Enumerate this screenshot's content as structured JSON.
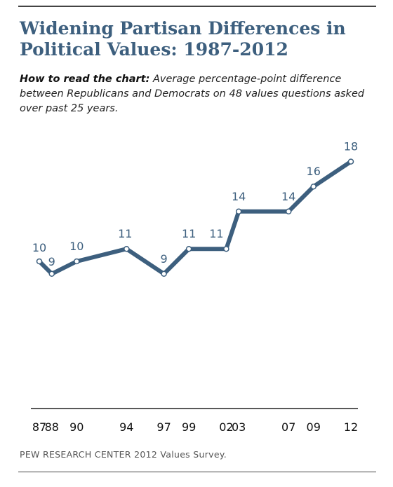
{
  "title_line1": "Widening Partisan Differences in",
  "title_line2": "Political Values: 1987-2012",
  "subtitle_lead": "How to read the chart:",
  "subtitle_text": "Average percentage-point difference between Republicans and Democrats on 48 values questions asked over past 25 years.",
  "source": "PEW RESEARCH  CENTER 2012 Values Survey.",
  "colors": {
    "title": "#3d5f7e",
    "line": "#3d5f7e",
    "label": "#3d5f7e",
    "axis": "#222222"
  },
  "chart_data": {
    "type": "line",
    "x": [
      1987,
      1988,
      1990,
      1994,
      1997,
      1999,
      2002,
      2003,
      2007,
      2009,
      2012
    ],
    "tick_labels": [
      "87",
      "88",
      "90",
      "94",
      "97",
      "99",
      "02",
      "03",
      "07",
      "09",
      "12"
    ],
    "values": [
      10,
      9,
      10,
      11,
      9,
      11,
      11,
      14,
      14,
      16,
      18
    ],
    "data_labels": [
      "10",
      "9",
      "10",
      "11",
      "9",
      "11",
      "11",
      "14",
      "14",
      "16",
      "18"
    ],
    "xlim": [
      1987,
      2012
    ],
    "grid": false
  }
}
